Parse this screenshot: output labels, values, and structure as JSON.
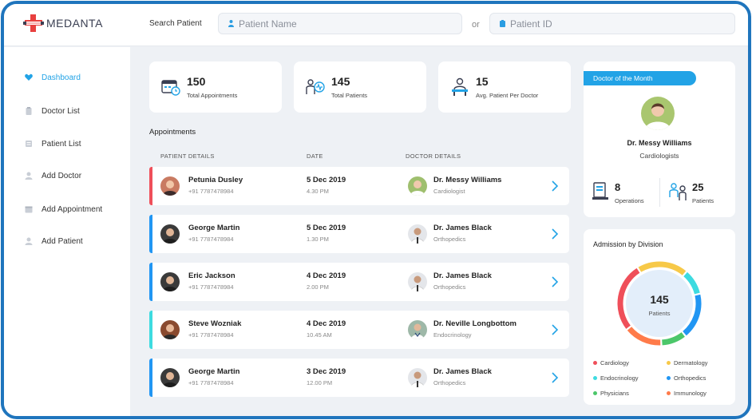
{
  "brand": {
    "name": "MEDANTA",
    "accent": "#1f75bd",
    "highlight": "#22a3e6",
    "logo_red": "#e8403f"
  },
  "header": {
    "search_label": "Search Patient",
    "patient_name_placeholder": "Patient Name",
    "or_label": "or",
    "patient_id_placeholder": "Patient ID"
  },
  "sidebar": {
    "items": [
      {
        "label": "Dashboard",
        "icon": "heart-icon",
        "active": true
      },
      {
        "label": "Doctor List",
        "icon": "clipboard-icon",
        "active": false
      },
      {
        "label": "Patient List",
        "icon": "list-icon",
        "active": false
      },
      {
        "label": "Add Doctor",
        "icon": "user-add-icon",
        "active": false
      },
      {
        "label": "Add Appointment",
        "icon": "calendar-icon",
        "active": false
      },
      {
        "label": "Add Patient",
        "icon": "person-add-icon",
        "active": false
      }
    ]
  },
  "stats": [
    {
      "value": "150",
      "label": "Total Appointments",
      "icon": "appointments-icon"
    },
    {
      "value": "145",
      "label": "Total Patients",
      "icon": "patients-icon"
    },
    {
      "value": "15",
      "label": "Avg. Patient Per Doctor",
      "icon": "doctor-desk-icon"
    }
  ],
  "appointments": {
    "title": "Appointments",
    "columns": [
      "PATIENT DETAILS",
      "DATE",
      "DOCTOR DETAILS"
    ],
    "rows": [
      {
        "patient": "Petunia Dusley",
        "phone": "+91 7787478984",
        "date": "5 Dec 2019",
        "time": "4.30 PM",
        "doctor": "Dr. Messy Williams",
        "specialty": "Cardiologist",
        "bar_color": "#ef4f5a"
      },
      {
        "patient": "George Martin",
        "phone": "+91 7787478984",
        "date": "5 Dec 2019",
        "time": "1.30 PM",
        "doctor": "Dr. James Black",
        "specialty": "Orthopedics",
        "bar_color": "#2196f3"
      },
      {
        "patient": "Eric Jackson",
        "phone": "+91 7787478984",
        "date": "4 Dec 2019",
        "time": "2.00 PM",
        "doctor": "Dr. James Black",
        "specialty": "Orthopedics",
        "bar_color": "#2196f3"
      },
      {
        "patient": "Steve Wozniak",
        "phone": "+91 7787478984",
        "date": "4 Dec 2019",
        "time": "10.45 AM",
        "doctor": "Dr. Neville Longbottom",
        "specialty": "Endocrinology",
        "bar_color": "#3ddbe0"
      },
      {
        "patient": "George Martin",
        "phone": "+91 7787478984",
        "date": "3 Dec 2019",
        "time": "12.00 PM",
        "doctor": "Dr. James Black",
        "specialty": "Orthopedics",
        "bar_color": "#2196f3"
      }
    ]
  },
  "doctor_of_month": {
    "badge": "Doctor of the Month",
    "name": "Dr. Messy Williams",
    "specialty": "Cardiologists",
    "operations_value": "8",
    "operations_label": "Operations",
    "patients_value": "25",
    "patients_label": "Patients"
  },
  "admission": {
    "title": "Admission by Division",
    "center_value": "145",
    "center_label": "Patients",
    "divisions": [
      {
        "label": "Cardiology",
        "color": "#ef4f5a",
        "share": 0.27
      },
      {
        "label": "Dermatology",
        "color": "#f7c948",
        "share": 0.2
      },
      {
        "label": "Endocrinology",
        "color": "#3ddbe0",
        "share": 0.1
      },
      {
        "label": "Orthopedics",
        "color": "#2196f3",
        "share": 0.18
      },
      {
        "label": "Physicians",
        "color": "#4cc76a",
        "share": 0.1
      },
      {
        "label": "Immunology",
        "color": "#ff7b4a",
        "share": 0.15
      }
    ]
  }
}
